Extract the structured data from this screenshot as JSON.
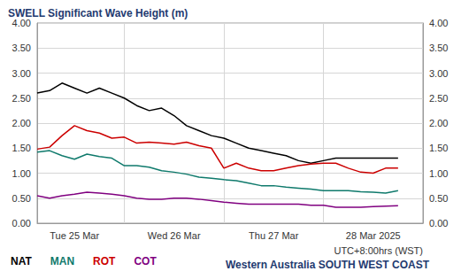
{
  "chart_data": {
    "type": "line",
    "title": "SWELL Significant Wave Height (m)",
    "annotations": [
      "UTC+8:00hrs (WST)",
      "Western Australia SOUTH WEST COAST"
    ],
    "categories": [
      null,
      null,
      null,
      "Tue 25 Mar",
      null,
      null,
      null,
      null,
      null,
      null,
      null,
      "Wed 26 Mar",
      null,
      null,
      null,
      null,
      null,
      null,
      null,
      "Thu 27 Mar",
      null,
      null,
      null,
      null,
      null,
      null,
      null,
      "28 Mar 2025",
      null,
      null,
      null,
      null
    ],
    "series": [
      {
        "name": "NAT",
        "color": "#000000",
        "values": [
          2.6,
          2.65,
          2.8,
          2.7,
          2.6,
          2.7,
          2.6,
          2.5,
          2.35,
          2.25,
          2.3,
          2.15,
          1.95,
          1.85,
          1.75,
          1.7,
          1.6,
          1.5,
          1.45,
          1.4,
          1.35,
          1.25,
          1.2,
          1.25,
          1.3,
          1.3,
          1.3,
          1.3,
          1.3,
          1.3,
          null,
          null
        ]
      },
      {
        "name": "MAN",
        "color": "#0f7a6c",
        "values": [
          1.42,
          1.45,
          1.35,
          1.28,
          1.38,
          1.33,
          1.3,
          1.15,
          1.15,
          1.12,
          1.05,
          1.02,
          0.98,
          0.92,
          0.9,
          0.87,
          0.85,
          0.8,
          0.75,
          0.75,
          0.72,
          0.7,
          0.68,
          0.65,
          0.65,
          0.65,
          0.63,
          0.62,
          0.6,
          0.65,
          null,
          null
        ]
      },
      {
        "name": "ROT",
        "color": "#cc0000",
        "values": [
          1.48,
          1.52,
          1.75,
          1.95,
          1.85,
          1.8,
          1.7,
          1.72,
          1.6,
          1.62,
          1.6,
          1.58,
          1.62,
          1.55,
          1.5,
          1.1,
          1.2,
          1.1,
          1.05,
          1.05,
          1.1,
          1.15,
          1.18,
          1.2,
          1.2,
          1.1,
          1.02,
          1.0,
          1.1,
          1.1,
          null,
          null
        ]
      },
      {
        "name": "COT",
        "color": "#800080",
        "values": [
          0.55,
          0.5,
          0.55,
          0.58,
          0.62,
          0.6,
          0.58,
          0.55,
          0.5,
          0.48,
          0.48,
          0.5,
          0.5,
          0.48,
          0.45,
          0.42,
          0.4,
          0.38,
          0.38,
          0.38,
          0.38,
          0.38,
          0.36,
          0.36,
          0.32,
          0.32,
          0.32,
          0.33,
          0.34,
          0.35,
          null,
          null
        ]
      }
    ],
    "ylim": [
      0,
      4
    ],
    "yticks": [
      {
        "value": 0,
        "label": "0.00"
      },
      {
        "value": 0.5,
        "label": "0.50"
      },
      {
        "value": 1,
        "label": "1.00"
      },
      {
        "value": 1.5,
        "label": "1.50"
      },
      {
        "value": 2,
        "label": "2.00"
      },
      {
        "value": 2.5,
        "label": "2.50"
      },
      {
        "value": 3,
        "label": "3.00"
      },
      {
        "value": 3.5,
        "label": "3.50"
      },
      {
        "value": 4,
        "label": "4.00"
      }
    ],
    "y2lim": [
      0,
      4
    ],
    "y2ticks": [
      {
        "value": 0,
        "label": "0.00"
      },
      {
        "value": 0.5,
        "label": "0.50"
      },
      {
        "value": 1,
        "label": "1.00"
      },
      {
        "value": 1.5,
        "label": "1.50"
      },
      {
        "value": 2,
        "label": "2.00"
      },
      {
        "value": 2.5,
        "label": "2.50"
      },
      {
        "value": 3,
        "label": "3.00"
      },
      {
        "value": 3.5,
        "label": "3.50"
      },
      {
        "value": 4,
        "label": "4.00"
      }
    ],
    "grid": true,
    "legend": "bottom-left"
  }
}
